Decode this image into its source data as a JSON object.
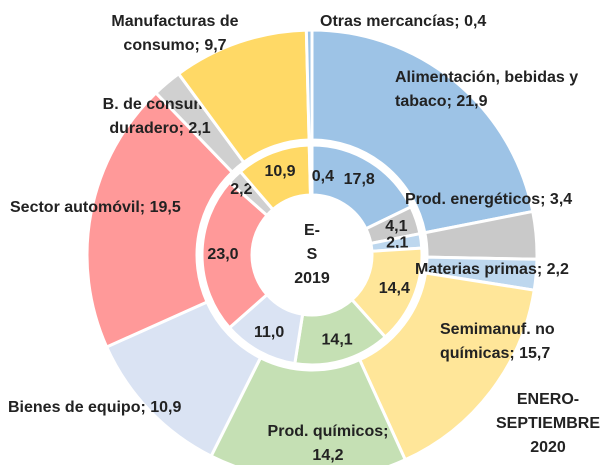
{
  "chart_data": {
    "type": "nested-donut",
    "series": [
      {
        "name": "E-S 2019",
        "ring": "inner",
        "values": [
          17.8,
          4.1,
          2.1,
          14.4,
          14.1,
          11.0,
          23.0,
          2.2,
          10.9,
          0.4
        ],
        "value_labels": [
          "17,8",
          "4,1",
          "2,1",
          "14,4",
          "14,1",
          "11,0",
          "23,0",
          "2,2",
          "10,9",
          "0,4"
        ],
        "colors": [
          "#9dc3e6",
          "#c9c9c9",
          "#bdd7ee",
          "#ffe699",
          "#c5e0b4",
          "#dae3f3",
          "#ff9999",
          "#d0d0d0",
          "#ffd966",
          "#9dc3e6"
        ]
      },
      {
        "name": "ENERO-SEPTIEMBRE 2020",
        "ring": "outer",
        "values": [
          21.9,
          3.4,
          2.2,
          15.7,
          14.2,
          10.9,
          19.5,
          2.1,
          9.7,
          0.4
        ],
        "value_labels": [
          "Alimentación, bebidas y tabaco; 21,9",
          "Prod. energéticos; 3,4",
          "Materias primas; 2,2",
          "Semimanuf. no químicas; 15,7",
          "Prod. químicos; 14,2",
          "Bienes de equipo; 10,9",
          "Sector automóvil; 19,5",
          "B. de consumo duradero; 2,1",
          "Manufacturas de consumo; 9,7",
          "Otras mercancías; 0,4"
        ],
        "colors": [
          "#9dc3e6",
          "#c9c9c9",
          "#bdd7ee",
          "#ffe699",
          "#c5e0b4",
          "#dae3f3",
          "#ff9999",
          "#d0d0d0",
          "#ffd966",
          "#9dc3e6"
        ]
      }
    ]
  }
}
